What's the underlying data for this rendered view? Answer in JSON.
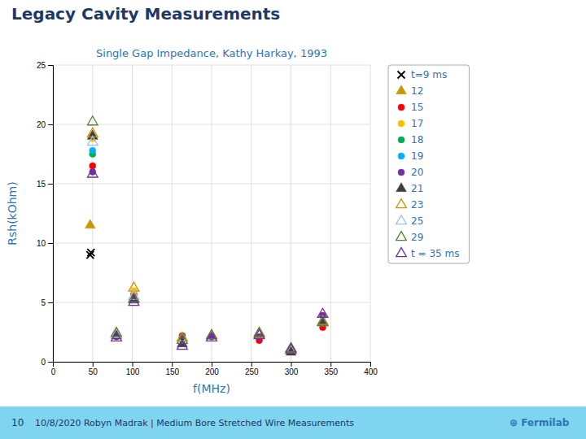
{
  "chart_data": {
    "type": "scatter",
    "title": "Legacy Cavity Measurements",
    "subtitle": "Single Gap Impedance, Kathy Harkay, 1993",
    "x_label": "f(MHz)",
    "y_label": "Rsh(kOhm)",
    "annotations": [
      "10",
      "10/8/2020  Robyn Madrak | Medium Bore Stretched Wire Measurements",
      "⊕ Fermilab"
    ],
    "xlim": [
      0,
      400
    ],
    "ylim": [
      0,
      25
    ],
    "xticks": [
      0,
      50,
      100,
      150,
      200,
      250,
      300,
      350,
      400
    ],
    "yticks": [
      0,
      5,
      10,
      15,
      20,
      25
    ],
    "grid": true,
    "legend": "right",
    "series": [
      {
        "name": "t=9 ms",
        "color": "#000000",
        "marker": "x",
        "x": [
          47,
          48
        ],
        "values": [
          9.0,
          9.2
        ]
      },
      {
        "name": "12",
        "color": "#c8960c",
        "marker": "triangle",
        "x": [
          47,
          50
        ],
        "values": [
          11.5,
          19.0
        ]
      },
      {
        "name": "15",
        "color": "#ff0000",
        "marker": "circle",
        "x": [
          50,
          102,
          163,
          260,
          340
        ],
        "values": [
          16.5,
          5.7,
          2.2,
          1.8,
          2.9
        ]
      },
      {
        "name": "17",
        "color": "#ffc000",
        "marker": "circle",
        "x": [
          50,
          102
        ],
        "values": [
          18.8,
          6.0
        ]
      },
      {
        "name": "18",
        "color": "#00b050",
        "marker": "circle",
        "x": [
          50
        ],
        "values": [
          17.5
        ]
      },
      {
        "name": "19",
        "color": "#00b0f0",
        "marker": "circle",
        "x": [
          50
        ],
        "values": [
          17.8
        ]
      },
      {
        "name": "20",
        "color": "#7030a0",
        "marker": "circle",
        "x": [
          50,
          80,
          163,
          200,
          260,
          340
        ],
        "values": [
          16.0,
          2.1,
          2.1,
          2.1,
          2.1,
          3.9
        ]
      },
      {
        "name": "21",
        "color": "#404040",
        "marker": "triangle",
        "x": [
          50,
          80,
          102,
          163,
          300,
          340
        ],
        "values": [
          19.0,
          2.2,
          5.2,
          1.5,
          0.8,
          3.3
        ]
      },
      {
        "name": "23",
        "color": "#c8960c",
        "marker": "triangle-open",
        "x": [
          50,
          80,
          102,
          163,
          200,
          260,
          300,
          340
        ],
        "values": [
          19.2,
          2.3,
          6.2,
          2.0,
          2.2,
          2.3,
          1.0,
          3.4
        ]
      },
      {
        "name": "25",
        "color": "#9dc3e6",
        "marker": "triangle-open",
        "x": [
          50,
          80,
          102,
          300,
          340
        ],
        "values": [
          18.5,
          2.3,
          5.5,
          1.1,
          3.3
        ]
      },
      {
        "name": "29",
        "color": "#548235",
        "marker": "triangle-open",
        "x": [
          50,
          80,
          102,
          163,
          200,
          260,
          300,
          340
        ],
        "values": [
          20.2,
          2.4,
          5.3,
          1.8,
          2.2,
          2.4,
          1.1,
          3.3
        ]
      },
      {
        "name": "t = 35 ms",
        "color": "#7030a0",
        "marker": "triangle-open",
        "x": [
          50,
          80,
          102,
          163,
          200,
          260,
          300,
          340
        ],
        "values": [
          15.8,
          2.0,
          5.0,
          1.3,
          2.0,
          2.2,
          1.0,
          4.0
        ]
      }
    ]
  }
}
